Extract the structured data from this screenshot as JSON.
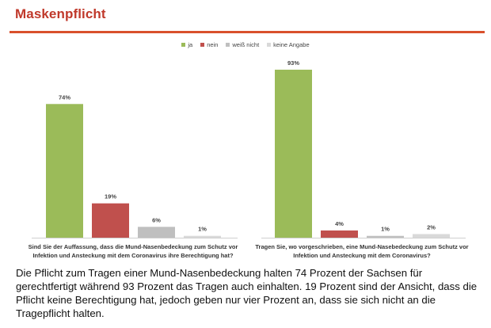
{
  "page": {
    "title": "Maskenpflicht",
    "summary": "Die Pflicht zum Tragen einer Mund-Nasenbedeckung halten 74 Prozent der Sachsen für gerechtfertigt während 93 Prozent das Tragen auch einhalten. 19 Prozent sind der Ansicht, dass die Pflicht keine Berechtigung hat, jedoch geben nur vier Prozent an, dass sie sich nicht an die Tragepflicht halten."
  },
  "colors": {
    "title": "#c0392b",
    "rule": "#d9502c",
    "ja": "#9bbb59",
    "nein": "#c0504d",
    "weiss_nicht": "#bfbfbf",
    "keine_angabe": "#d9d9d9"
  },
  "chart_data": {
    "type": "bar",
    "title": "Maskenpflicht",
    "xlabel": "",
    "ylabel": "",
    "ylim": [
      0,
      100
    ],
    "grid": false,
    "legend_position": "top-center",
    "value_suffix": "%",
    "categories": [
      "Sind Sie der Auffassung, dass die Mund-Nasenbedeckung zum Schutz vor Infektion und Ansteckung mit dem Coronavirus ihre Berechtigung hat?",
      "Tragen Sie, wo vorgeschrieben, eine Mund-Nasebedeckung zum Schutz vor Infektion und Ansteckung mit dem Coronavirus?"
    ],
    "series": [
      {
        "name": "ja",
        "color": "#9bbb59",
        "values": [
          74,
          93
        ]
      },
      {
        "name": "nein",
        "color": "#c0504d",
        "values": [
          19,
          4
        ]
      },
      {
        "name": "weiß nicht",
        "color": "#bfbfbf",
        "values": [
          6,
          1
        ]
      },
      {
        "name": "keine Angabe",
        "color": "#d9d9d9",
        "values": [
          1,
          2
        ]
      }
    ]
  }
}
